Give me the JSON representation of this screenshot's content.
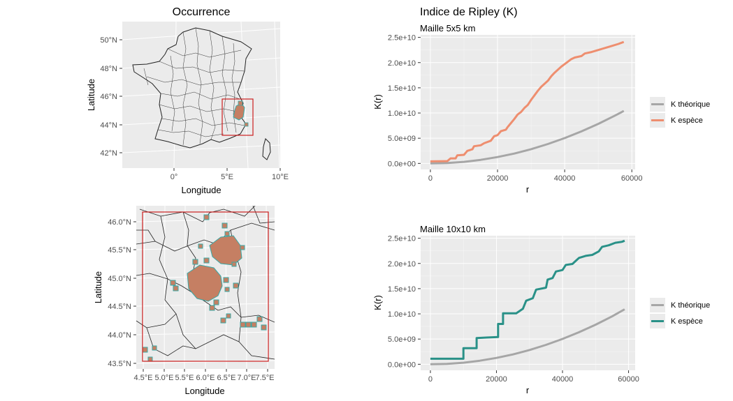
{
  "colors": {
    "theoretical": "#a6a6a6",
    "species_top": "#ee8e6f",
    "species_bottom": "#2a9188",
    "extent_box": "#cc1f1f",
    "cell_fill": "#c57f63",
    "cell_border": "#3aa8a5",
    "panel_bg": "#ebebeb"
  },
  "maps": {
    "occurrence": {
      "title": "Occurrence",
      "xlabel": "Longitude",
      "ylabel": "Latitude",
      "xticks": [
        "0°",
        "5°E",
        "10°E"
      ],
      "yticks": [
        "42°N",
        "44°N",
        "46°N",
        "48°N",
        "50°N"
      ]
    },
    "zoom": {
      "xlabel": "Longitude",
      "ylabel": "Latitude",
      "xticks": [
        "4.5°E",
        "5.0°E",
        "5.5°E",
        "6.0°E",
        "6.5°E",
        "7.0°E",
        "7.5°E"
      ],
      "yticks": [
        "43.5°N",
        "44.0°N",
        "44.5°N",
        "45.0°N",
        "45.5°N",
        "46.0°N"
      ]
    }
  },
  "ripley": {
    "title": "Indice de Ripley (K)",
    "legend": [
      "K théorique",
      "K espèce"
    ]
  },
  "chart_data": [
    {
      "type": "line",
      "subtitle": "Maille 5x5 km",
      "xlabel": "r",
      "ylabel": "K(r)",
      "xlim": [
        -2900,
        61000
      ],
      "ylim": [
        -1200000000.0,
        25500000000.0
      ],
      "xticks": [
        "0",
        "20000",
        "40000",
        "60000"
      ],
      "yticks": [
        "0.0e+00",
        "5.0e+09",
        "1.0e+10",
        "1.5e+10",
        "2.0e+10",
        "2.5e+10"
      ],
      "series": [
        {
          "name": "K théorique",
          "points": [
            [
              0,
              0
            ],
            [
              5000,
              78000000.0
            ],
            [
              10000,
              310000000.0
            ],
            [
              15000,
              710000000.0
            ],
            [
              20000,
              1260000000.0
            ],
            [
              25000,
              1960000000.0
            ],
            [
              30000,
              2830000000.0
            ],
            [
              35000,
              3850000000.0
            ],
            [
              40000,
              5030000000.0
            ],
            [
              45000,
              6360000000.0
            ],
            [
              50000,
              7850000000.0
            ],
            [
              55000,
              9500000000.0
            ],
            [
              57600,
              10400000000.0
            ]
          ]
        },
        {
          "name": "K espèce",
          "points": [
            [
              0,
              400000000.0
            ],
            [
              5000,
              450000000.0
            ],
            [
              6000,
              1000000000.0
            ],
            [
              7500,
              1000000000.0
            ],
            [
              8000,
              1600000000.0
            ],
            [
              10000,
              1700000000.0
            ],
            [
              11000,
              2500000000.0
            ],
            [
              12500,
              2800000000.0
            ],
            [
              13000,
              3400000000.0
            ],
            [
              15000,
              3600000000.0
            ],
            [
              16000,
              4000000000.0
            ],
            [
              18000,
              4500000000.0
            ],
            [
              19000,
              5400000000.0
            ],
            [
              20000,
              5600000000.0
            ],
            [
              21000,
              6400000000.0
            ],
            [
              22500,
              6700000000.0
            ],
            [
              23000,
              7200000000.0
            ],
            [
              24000,
              8000000000.0
            ],
            [
              25000,
              8800000000.0
            ],
            [
              26000,
              9700000000.0
            ],
            [
              27000,
              10200000000.0
            ],
            [
              28000,
              11000000000.0
            ],
            [
              29000,
              11600000000.0
            ],
            [
              30000,
              12600000000.0
            ],
            [
              31000,
              13500000000.0
            ],
            [
              32000,
              14400000000.0
            ],
            [
              33000,
              15200000000.0
            ],
            [
              34000,
              15800000000.0
            ],
            [
              35000,
              16400000000.0
            ],
            [
              36000,
              17300000000.0
            ],
            [
              37000,
              18000000000.0
            ],
            [
              38000,
              18600000000.0
            ],
            [
              39000,
              19200000000.0
            ],
            [
              40000,
              19700000000.0
            ],
            [
              41000,
              20200000000.0
            ],
            [
              42000,
              20700000000.0
            ],
            [
              43000,
              21000000000.0
            ],
            [
              45000,
              21300000000.0
            ],
            [
              46000,
              21800000000.0
            ],
            [
              48000,
              22100000000.0
            ],
            [
              50000,
              22500000000.0
            ],
            [
              52000,
              22900000000.0
            ],
            [
              54000,
              23300000000.0
            ],
            [
              56000,
              23700000000.0
            ],
            [
              57600,
              24100000000.0
            ]
          ]
        }
      ]
    },
    {
      "type": "line",
      "subtitle": "Maille 10x10 km",
      "xlabel": "r",
      "ylabel": "K(r)",
      "xlim": [
        -2950,
        62000
      ],
      "ylim": [
        -1200000000.0,
        25500000000.0
      ],
      "xticks": [
        "0",
        "20000",
        "40000",
        "60000"
      ],
      "yticks": [
        "0.0e+00",
        "5.0e+09",
        "1.0e+10",
        "1.5e+10",
        "2.0e+10",
        "2.5e+10"
      ],
      "series": [
        {
          "name": "K théorique",
          "points": [
            [
              0,
              0
            ],
            [
              5000,
              78000000.0
            ],
            [
              10000,
              310000000.0
            ],
            [
              15000,
              710000000.0
            ],
            [
              20000,
              1260000000.0
            ],
            [
              25000,
              1960000000.0
            ],
            [
              30000,
              2830000000.0
            ],
            [
              35000,
              3850000000.0
            ],
            [
              40000,
              5030000000.0
            ],
            [
              45000,
              6360000000.0
            ],
            [
              50000,
              7850000000.0
            ],
            [
              55000,
              9500000000.0
            ],
            [
              58800,
              10900000000.0
            ]
          ]
        },
        {
          "name": "K espèce",
          "points": [
            [
              0,
              1100000000.0
            ],
            [
              10000,
              1100000000.0
            ],
            [
              10000,
              3200000000.0
            ],
            [
              14000,
              3200000000.0
            ],
            [
              14000,
              5200000000.0
            ],
            [
              17000,
              5300000000.0
            ],
            [
              20500,
              5400000000.0
            ],
            [
              20500,
              8000000000.0
            ],
            [
              22000,
              8000000000.0
            ],
            [
              22000,
              10100000000.0
            ],
            [
              26000,
              10100000000.0
            ],
            [
              28000,
              11000000000.0
            ],
            [
              29000,
              12600000000.0
            ],
            [
              31000,
              13100000000.0
            ],
            [
              32000,
              14800000000.0
            ],
            [
              35000,
              15200000000.0
            ],
            [
              35500,
              16800000000.0
            ],
            [
              37000,
              17100000000.0
            ],
            [
              38000,
              18400000000.0
            ],
            [
              40000,
              18700000000.0
            ],
            [
              41000,
              19700000000.0
            ],
            [
              43000,
              19900000000.0
            ],
            [
              44000,
              20500000000.0
            ],
            [
              45000,
              21100000000.0
            ],
            [
              47000,
              21500000000.0
            ],
            [
              49000,
              21700000000.0
            ],
            [
              51000,
              22400000000.0
            ],
            [
              52000,
              23300000000.0
            ],
            [
              54000,
              23600000000.0
            ],
            [
              56000,
              24100000000.0
            ],
            [
              58000,
              24300000000.0
            ],
            [
              58800,
              24500000000.0
            ]
          ]
        }
      ]
    }
  ]
}
